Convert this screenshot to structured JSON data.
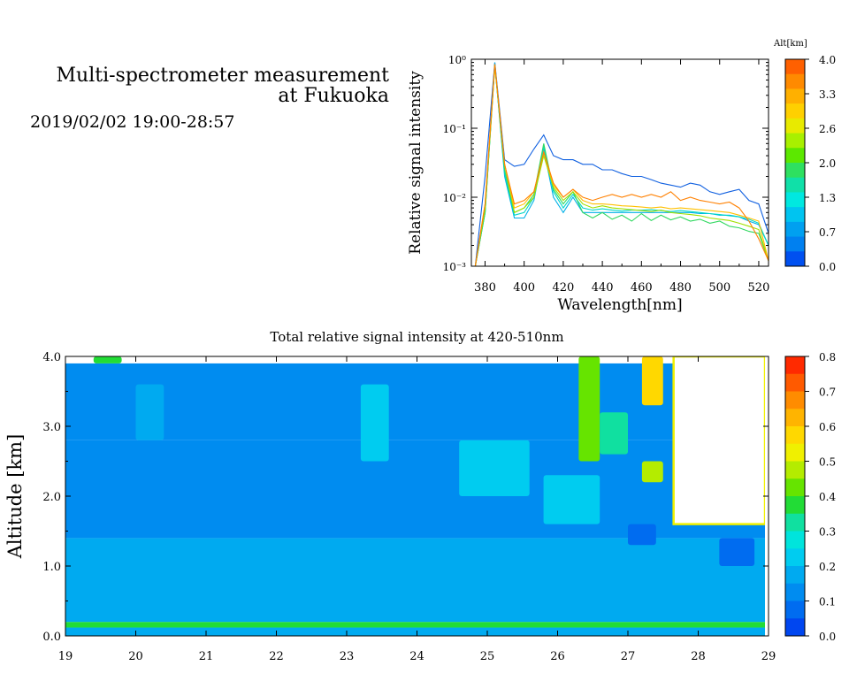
{
  "header": {
    "title_line1": "Multi-spectrometer measurement",
    "title_line2": "at Fukuoka",
    "datetime": "2019/02/02 19:00-28:57"
  },
  "chart_data": [
    {
      "type": "line",
      "xlabel": "Wavelength[nm]",
      "ylabel": "Relative signal intensity",
      "xlim": [
        373,
        525
      ],
      "ylim": [
        0.001,
        1
      ],
      "yscale": "log",
      "x_ticks": [
        380,
        400,
        420,
        440,
        460,
        480,
        500,
        520
      ],
      "y_ticks": [
        "10⁻³",
        "10⁻²",
        "10⁻¹",
        "10⁰"
      ],
      "x": [
        375,
        380,
        385,
        390,
        395,
        400,
        405,
        410,
        415,
        420,
        425,
        430,
        435,
        440,
        445,
        450,
        455,
        460,
        465,
        470,
        475,
        480,
        485,
        490,
        495,
        500,
        505,
        510,
        515,
        520,
        525
      ],
      "colorbar": {
        "label": "Alt[km]",
        "ticks": [
          "4.0",
          "3.3",
          "2.6",
          "2.0",
          "1.3",
          "0.7",
          "0.0"
        ],
        "colors": [
          "#ff6000",
          "#ff8a00",
          "#ffb000",
          "#ffd000",
          "#e8ea00",
          "#a8f000",
          "#5ce800",
          "#2ee060",
          "#10e0a8",
          "#00e8e0",
          "#00c4f0",
          "#00a0f0",
          "#0080f0",
          "#0050f0"
        ]
      },
      "series": [
        {
          "color": "#1060e0",
          "values": [
            0.001,
            0.02,
            0.9,
            0.035,
            0.028,
            0.03,
            0.05,
            0.08,
            0.04,
            0.035,
            0.035,
            0.03,
            0.03,
            0.025,
            0.025,
            0.022,
            0.02,
            0.02,
            0.018,
            0.016,
            0.015,
            0.014,
            0.016,
            0.015,
            0.012,
            0.011,
            0.012,
            0.013,
            0.009,
            0.008,
            0.003
          ]
        },
        {
          "color": "#00b0e8",
          "values": [
            0.001,
            0.006,
            0.9,
            0.02,
            0.005,
            0.005,
            0.009,
            0.05,
            0.01,
            0.006,
            0.01,
            0.006,
            0.006,
            0.006,
            0.006,
            0.006,
            0.006,
            0.006,
            0.006,
            0.006,
            0.006,
            0.006,
            0.006,
            0.0058,
            0.0058,
            0.0055,
            0.0055,
            0.0052,
            0.0045,
            0.004,
            0.002
          ]
        },
        {
          "color": "#00d8c8",
          "values": [
            0.001,
            0.006,
            0.85,
            0.022,
            0.0055,
            0.006,
            0.01,
            0.055,
            0.012,
            0.007,
            0.011,
            0.007,
            0.0065,
            0.0068,
            0.0065,
            0.0063,
            0.0065,
            0.0065,
            0.0066,
            0.0064,
            0.0062,
            0.0064,
            0.0062,
            0.006,
            0.0058,
            0.0056,
            0.0054,
            0.0052,
            0.0048,
            0.0042,
            0.002
          ]
        },
        {
          "color": "#30d860",
          "values": [
            0.001,
            0.006,
            0.8,
            0.025,
            0.006,
            0.007,
            0.011,
            0.06,
            0.013,
            0.008,
            0.012,
            0.006,
            0.005,
            0.006,
            0.0048,
            0.0055,
            0.0045,
            0.0058,
            0.0046,
            0.0055,
            0.0047,
            0.0052,
            0.0045,
            0.0048,
            0.0042,
            0.0045,
            0.0038,
            0.0036,
            0.0032,
            0.003,
            0.0012
          ]
        },
        {
          "color": "#a0e000",
          "values": [
            0.001,
            0.007,
            0.8,
            0.03,
            0.006,
            0.007,
            0.01,
            0.04,
            0.014,
            0.009,
            0.012,
            0.008,
            0.007,
            0.0075,
            0.007,
            0.0068,
            0.0066,
            0.0064,
            0.0062,
            0.0065,
            0.006,
            0.0058,
            0.0056,
            0.0054,
            0.005,
            0.0048,
            0.0046,
            0.0042,
            0.0038,
            0.0034,
            0.0012
          ]
        },
        {
          "color": "#ffc000",
          "values": [
            0.001,
            0.008,
            0.82,
            0.03,
            0.007,
            0.008,
            0.012,
            0.045,
            0.015,
            0.01,
            0.013,
            0.009,
            0.008,
            0.008,
            0.0078,
            0.0075,
            0.0074,
            0.0072,
            0.007,
            0.0072,
            0.0068,
            0.007,
            0.0068,
            0.0066,
            0.0064,
            0.0062,
            0.006,
            0.0055,
            0.005,
            0.0045,
            0.0012
          ]
        },
        {
          "color": "#ff8000",
          "values": [
            0.001,
            0.008,
            0.85,
            0.03,
            0.008,
            0.009,
            0.012,
            0.045,
            0.016,
            0.01,
            0.013,
            0.01,
            0.009,
            0.01,
            0.011,
            0.01,
            0.011,
            0.01,
            0.011,
            0.01,
            0.012,
            0.009,
            0.01,
            0.009,
            0.0085,
            0.008,
            0.0085,
            0.007,
            0.0045,
            0.0025,
            0.0012
          ]
        }
      ]
    },
    {
      "type": "heatmap",
      "title": "Total relative signal intensity at 420-510nm",
      "xlabel": "",
      "ylabel": "Altitude [km]",
      "xlim": [
        19,
        29
      ],
      "ylim": [
        0,
        4
      ],
      "x_ticks": [
        "19",
        "20",
        "21",
        "22",
        "23",
        "24",
        "25",
        "26",
        "27",
        "28",
        "29"
      ],
      "y_ticks": [
        "0.0",
        "1.0",
        "2.0",
        "3.0",
        "4.0"
      ],
      "x_data_end": 28.95,
      "colorbar": {
        "ticks": [
          "0.8",
          "0.7",
          "0.6",
          "0.5",
          "0.4",
          "0.3",
          "0.2",
          "0.1",
          "0.0"
        ],
        "colors": [
          "#ff2a00",
          "#ff5a00",
          "#ff8c00",
          "#ffb400",
          "#ffd800",
          "#f0f000",
          "#b4ec00",
          "#66e400",
          "#22dc36",
          "#10e0a0",
          "#00e4dc",
          "#00ccf0",
          "#00aaf0",
          "#008cf0",
          "#006cf0",
          "#0046f0"
        ]
      },
      "bands": [
        {
          "alt_range": [
            0.0,
            0.12
          ],
          "value": 0.17
        },
        {
          "alt_range": [
            0.12,
            0.2
          ],
          "value": 0.35
        },
        {
          "alt_range": [
            0.2,
            1.4
          ],
          "value": 0.17
        },
        {
          "alt_range": [
            1.4,
            2.8
          ],
          "value": 0.1
        },
        {
          "alt_range": [
            2.8,
            3.9
          ],
          "value": 0.11
        }
      ],
      "patches": [
        {
          "t": [
            19.4,
            19.8
          ],
          "alt": [
            3.9,
            4.0
          ],
          "value": 0.35
        },
        {
          "t": [
            20.0,
            20.4
          ],
          "alt": [
            2.8,
            3.6
          ],
          "value": 0.15
        },
        {
          "t": [
            23.2,
            23.6
          ],
          "alt": [
            2.5,
            3.6
          ],
          "value": 0.2
        },
        {
          "t": [
            24.6,
            25.6
          ],
          "alt": [
            2.0,
            2.8
          ],
          "value": 0.2
        },
        {
          "t": [
            25.8,
            26.6
          ],
          "alt": [
            1.6,
            2.3
          ],
          "value": 0.22
        },
        {
          "t": [
            26.3,
            26.6
          ],
          "alt": [
            2.5,
            4.0
          ],
          "value": 0.45
        },
        {
          "t": [
            26.6,
            27.0
          ],
          "alt": [
            2.6,
            3.2
          ],
          "value": 0.3
        },
        {
          "t": [
            27.0,
            27.4
          ],
          "alt": [
            1.3,
            1.6
          ],
          "value": 0.07
        },
        {
          "t": [
            27.2,
            27.5
          ],
          "alt": [
            2.2,
            2.5
          ],
          "value": 0.5
        },
        {
          "t": [
            27.2,
            27.5
          ],
          "alt": [
            3.3,
            4.0
          ],
          "value": 0.6
        },
        {
          "t": [
            28.3,
            28.8
          ],
          "alt": [
            1.0,
            1.4
          ],
          "value": 0.07
        }
      ],
      "missing_region": {
        "t": [
          27.65,
          28.95
        ],
        "alt": [
          1.6,
          4.0
        ],
        "edge_value": 0.55
      }
    }
  ]
}
